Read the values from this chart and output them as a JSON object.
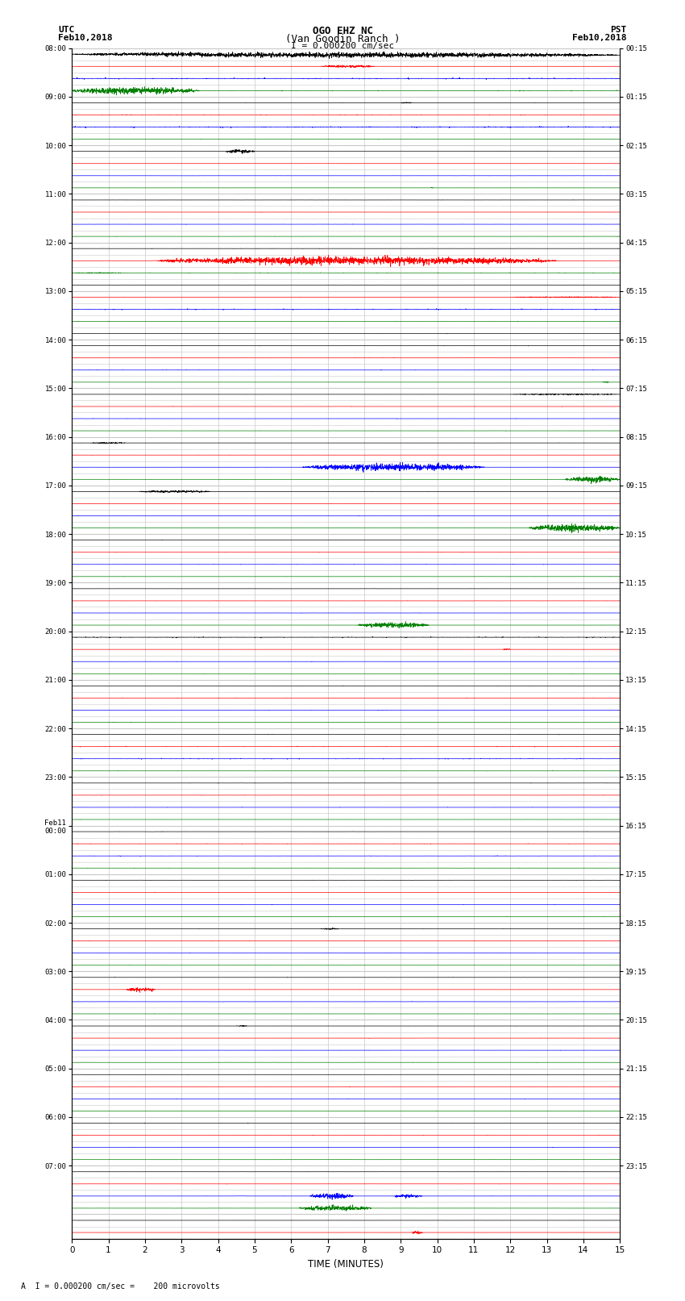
{
  "title_line1": "OGO EHZ NC",
  "title_line2": "(Van Goodin Ranch )",
  "scale_label": "I = 0.000200 cm/sec",
  "left_label_top": "UTC",
  "left_label_date": "Feb10,2018",
  "right_label_top": "PST",
  "right_label_date": "Feb10,2018",
  "bottom_label": "TIME (MINUTES)",
  "footnote": "A  I = 0.000200 cm/sec =    200 microvolts",
  "utc_times": [
    "08:00",
    "",
    "",
    "",
    "09:00",
    "",
    "",
    "",
    "10:00",
    "",
    "",
    "",
    "11:00",
    "",
    "",
    "",
    "12:00",
    "",
    "",
    "",
    "13:00",
    "",
    "",
    "",
    "14:00",
    "",
    "",
    "",
    "15:00",
    "",
    "",
    "",
    "16:00",
    "",
    "",
    "",
    "17:00",
    "",
    "",
    "",
    "18:00",
    "",
    "",
    "",
    "19:00",
    "",
    "",
    "",
    "20:00",
    "",
    "",
    "",
    "21:00",
    "",
    "",
    "",
    "22:00",
    "",
    "",
    "",
    "23:00",
    "",
    "",
    "",
    "Feb11\n00:00",
    "",
    "",
    "",
    "01:00",
    "",
    "",
    "",
    "02:00",
    "",
    "",
    "",
    "03:00",
    "",
    "",
    "",
    "04:00",
    "",
    "",
    "",
    "05:00",
    "",
    "",
    "",
    "06:00",
    "",
    "",
    "",
    "07:00",
    ""
  ],
  "pst_times_labels": [
    "00:15",
    "",
    "",
    "",
    "01:15",
    "",
    "",
    "",
    "02:15",
    "",
    "",
    "",
    "03:15",
    "",
    "",
    "",
    "04:15",
    "",
    "",
    "",
    "05:15",
    "",
    "",
    "",
    "06:15",
    "",
    "",
    "",
    "07:15",
    "",
    "",
    "",
    "08:15",
    "",
    "",
    "",
    "09:15",
    "",
    "",
    "",
    "10:15",
    "",
    "",
    "",
    "11:15",
    "",
    "",
    "",
    "12:15",
    "",
    "",
    "",
    "13:15",
    "",
    "",
    "",
    "14:15",
    "",
    "",
    "",
    "15:15",
    "",
    "",
    "",
    "16:15",
    "",
    "",
    "",
    "17:15",
    "",
    "",
    "",
    "18:15",
    "",
    "",
    "",
    "19:15",
    "",
    "",
    "",
    "20:15",
    "",
    "",
    "",
    "21:15",
    "",
    "",
    "",
    "22:15",
    "",
    "",
    "",
    "23:15",
    ""
  ],
  "n_rows": 98,
  "n_minutes": 15,
  "bg_color": "#ffffff",
  "grid_color": "#c8c8c8",
  "trace_colors_cycle": [
    "black",
    "red",
    "blue",
    "green"
  ]
}
